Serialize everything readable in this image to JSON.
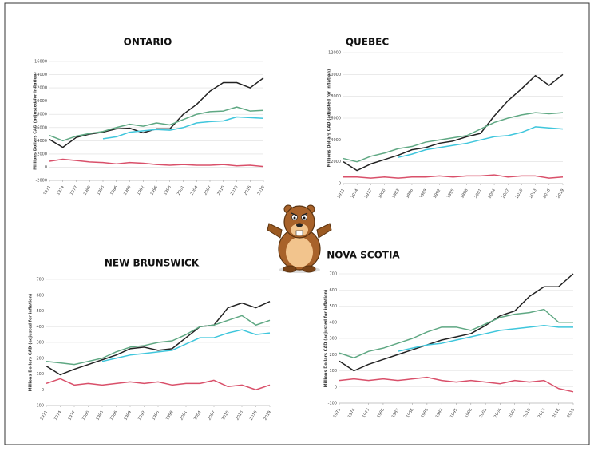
{
  "chart_data": [
    {
      "type": "line",
      "title": "ONTARIO",
      "y_label": "Millions Dollars CAD (adjusted for inflation)",
      "x": [
        1971,
        1974,
        1977,
        1980,
        1983,
        1986,
        1989,
        1992,
        1995,
        1998,
        2001,
        2004,
        2007,
        2010,
        2013,
        2016,
        2019
      ],
      "xlim": [
        1971,
        2019
      ],
      "xticks": [
        1971,
        1974,
        1977,
        1980,
        1983,
        1986,
        1989,
        1992,
        1995,
        1998,
        2001,
        2004,
        2007,
        2010,
        2013,
        2016,
        2019
      ],
      "ylim": [
        -2000,
        16000
      ],
      "yticks": [
        -2000,
        0,
        2000,
        4000,
        6000,
        8000,
        10000,
        12000,
        14000,
        16000
      ],
      "grid": true,
      "series": [
        {
          "color": "#222222",
          "values": [
            4200,
            3000,
            4500,
            5000,
            5300,
            5800,
            5900,
            5200,
            5800,
            5800,
            8000,
            9500,
            11500,
            12800,
            12800,
            12000,
            13500
          ]
        },
        {
          "color": "#5fa883",
          "values": [
            4800,
            4000,
            4700,
            5100,
            5400,
            6000,
            6500,
            6200,
            6700,
            6400,
            7200,
            8000,
            8400,
            8500,
            9100,
            8500,
            8600
          ]
        },
        {
          "color": "#3fc6dc",
          "values": [
            null,
            null,
            null,
            null,
            4300,
            4600,
            5300,
            5500,
            5700,
            5600,
            6000,
            6700,
            6900,
            7000,
            7600,
            7500,
            7400
          ]
        },
        {
          "color": "#d9506a",
          "values": [
            900,
            1200,
            1000,
            800,
            700,
            500,
            700,
            600,
            400,
            300,
            400,
            300,
            300,
            400,
            200,
            300,
            100
          ]
        }
      ]
    },
    {
      "type": "line",
      "title": "QUEBEC",
      "y_label": "Millions Dollars CAD (adjusted for inflation)",
      "x": [
        1971,
        1974,
        1977,
        1980,
        1983,
        1986,
        1989,
        1992,
        1995,
        1998,
        2001,
        2004,
        2007,
        2010,
        2013,
        2016,
        2019
      ],
      "xlim": [
        1971,
        2019
      ],
      "xticks": [
        1971,
        1974,
        1977,
        1980,
        1983,
        1986,
        1989,
        1992,
        1995,
        1998,
        2001,
        2004,
        2007,
        2010,
        2013,
        2016,
        2019
      ],
      "ylim": [
        0,
        12000
      ],
      "yticks": [
        0,
        2000,
        4000,
        6000,
        8000,
        10000,
        12000
      ],
      "grid": true,
      "series": [
        {
          "color": "#222222",
          "values": [
            2000,
            1200,
            1800,
            2200,
            2600,
            3100,
            3300,
            3700,
            3900,
            4300,
            4600,
            6200,
            7600,
            8700,
            9900,
            9000,
            10000
          ]
        },
        {
          "color": "#5fa883",
          "values": [
            2300,
            2000,
            2500,
            2800,
            3200,
            3400,
            3800,
            4000,
            4200,
            4400,
            5000,
            5600,
            6000,
            6300,
            6500,
            6400,
            6500
          ]
        },
        {
          "color": "#3fc6dc",
          "values": [
            null,
            null,
            null,
            null,
            2400,
            2700,
            3100,
            3300,
            3500,
            3700,
            4000,
            4300,
            4400,
            4700,
            5200,
            5100,
            5000
          ]
        },
        {
          "color": "#d9506a",
          "values": [
            600,
            600,
            500,
            600,
            500,
            600,
            600,
            700,
            600,
            700,
            700,
            800,
            600,
            700,
            700,
            500,
            600
          ]
        }
      ]
    },
    {
      "type": "line",
      "title": "NEW BRUNSWICK",
      "y_label": "Millions Dollars CAD (adjusted for inflation)",
      "x": [
        1971,
        1974,
        1977,
        1980,
        1983,
        1986,
        1989,
        1992,
        1995,
        1998,
        2001,
        2004,
        2007,
        2010,
        2013,
        2016,
        2019
      ],
      "xlim": [
        1971,
        2019
      ],
      "xticks": [
        1971,
        1974,
        1977,
        1980,
        1983,
        1986,
        1989,
        1992,
        1995,
        1998,
        2001,
        2004,
        2007,
        2010,
        2013,
        2016,
        2019
      ],
      "ylim": [
        -100,
        700
      ],
      "yticks": [
        -100,
        0,
        100,
        200,
        300,
        400,
        500,
        600,
        700
      ],
      "grid": true,
      "series": [
        {
          "color": "#222222",
          "values": [
            150,
            95,
            130,
            160,
            190,
            220,
            260,
            270,
            250,
            260,
            330,
            400,
            410,
            520,
            550,
            520,
            560
          ]
        },
        {
          "color": "#5fa883",
          "values": [
            180,
            170,
            160,
            180,
            200,
            240,
            270,
            280,
            300,
            310,
            350,
            400,
            410,
            440,
            470,
            410,
            440
          ]
        },
        {
          "color": "#3fc6dc",
          "values": [
            null,
            null,
            null,
            null,
            180,
            200,
            220,
            230,
            240,
            250,
            290,
            330,
            330,
            360,
            380,
            350,
            360
          ]
        },
        {
          "color": "#d9506a",
          "values": [
            40,
            70,
            30,
            40,
            30,
            40,
            50,
            40,
            50,
            30,
            40,
            40,
            60,
            20,
            30,
            0,
            30
          ]
        }
      ]
    },
    {
      "type": "line",
      "title": "NOVA SCOTIA",
      "y_label": "Millions Dollars CAD (adjusted for inflation)",
      "x": [
        1971,
        1974,
        1977,
        1980,
        1983,
        1986,
        1989,
        1992,
        1995,
        1998,
        2001,
        2004,
        2007,
        2010,
        2013,
        2016,
        2019
      ],
      "xlim": [
        1971,
        2019
      ],
      "xticks": [
        1971,
        1974,
        1977,
        1980,
        1983,
        1986,
        1989,
        1992,
        1995,
        1998,
        2001,
        2004,
        2007,
        2010,
        2013,
        2016,
        2019
      ],
      "ylim": [
        -100,
        700
      ],
      "yticks": [
        -100,
        0,
        100,
        200,
        300,
        400,
        500,
        600,
        700
      ],
      "grid": true,
      "series": [
        {
          "color": "#222222",
          "values": [
            160,
            100,
            140,
            170,
            200,
            230,
            260,
            290,
            310,
            330,
            380,
            440,
            470,
            560,
            620,
            620,
            700
          ]
        },
        {
          "color": "#5fa883",
          "values": [
            210,
            180,
            220,
            240,
            270,
            300,
            340,
            370,
            370,
            350,
            390,
            430,
            450,
            460,
            480,
            400,
            400
          ]
        },
        {
          "color": "#3fc6dc",
          "values": [
            null,
            null,
            null,
            null,
            220,
            240,
            260,
            270,
            290,
            310,
            330,
            350,
            360,
            370,
            380,
            370,
            370
          ]
        },
        {
          "color": "#d9506a",
          "values": [
            40,
            50,
            40,
            50,
            40,
            50,
            60,
            40,
            30,
            40,
            30,
            20,
            40,
            30,
            40,
            -10,
            -30
          ]
        }
      ]
    }
  ]
}
